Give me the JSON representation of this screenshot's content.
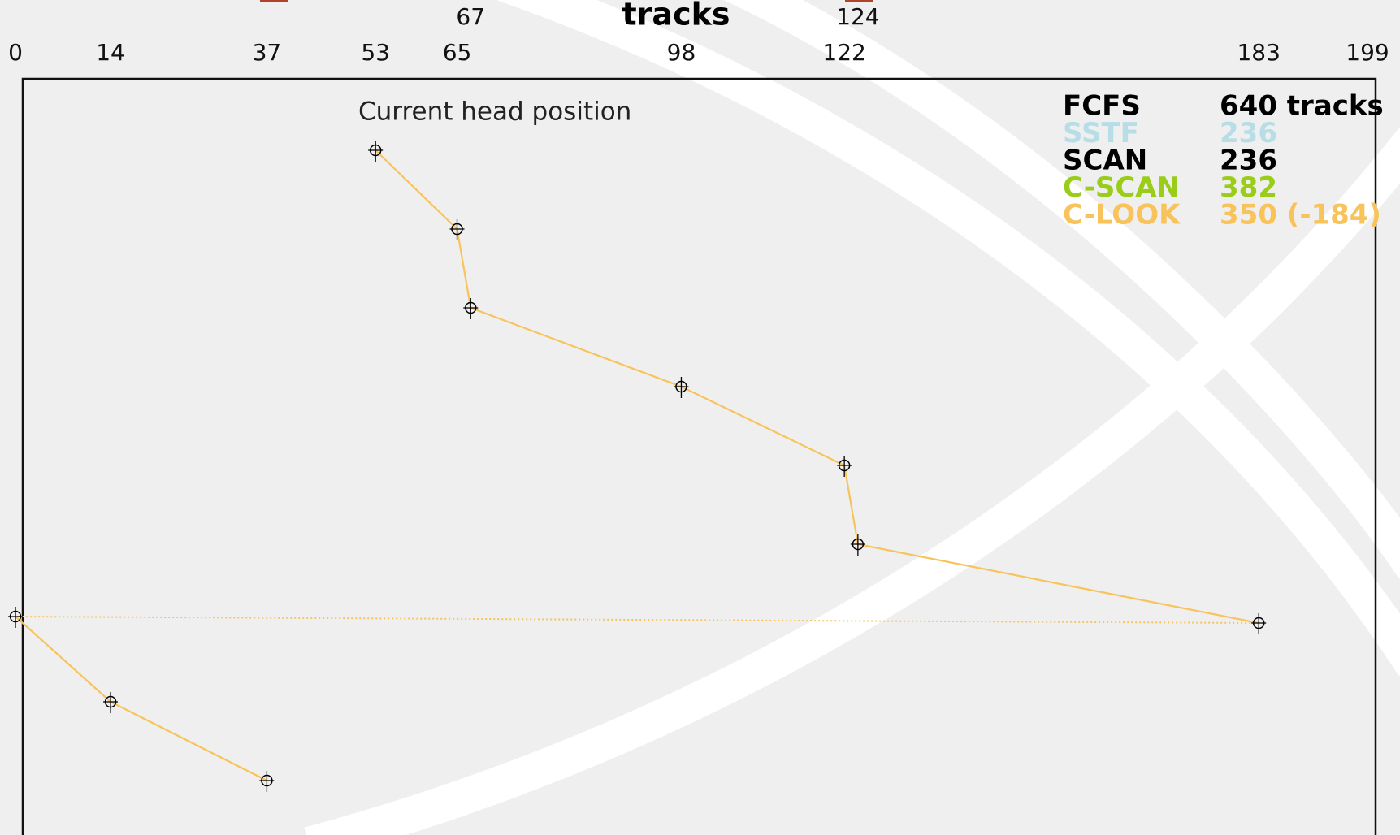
{
  "chart_data": {
    "type": "line",
    "title": "tracks",
    "annotation": "Current head position",
    "xlim": [
      0,
      199
    ],
    "xticks": [
      0,
      14,
      37,
      53,
      65,
      67,
      98,
      122,
      124,
      183,
      199
    ],
    "color": "#f8c35a",
    "series": [
      {
        "x": [
          53,
          65,
          67,
          98,
          122,
          124,
          183
        ]
      },
      {
        "x": [
          0,
          14,
          37
        ]
      }
    ],
    "legend": [
      {
        "name": "FCFS",
        "value": "640 tracks",
        "color": "#000000"
      },
      {
        "name": "SSTF",
        "value": "236",
        "color": "#b7dde6"
      },
      {
        "name": "SCAN",
        "value": "236",
        "color": "#000000"
      },
      {
        "name": "C-SCAN",
        "value": "382",
        "color": "#9acd1a"
      },
      {
        "name": "C-LOOK",
        "value": "350 (-184)",
        "color": "#f8c35a"
      }
    ]
  }
}
